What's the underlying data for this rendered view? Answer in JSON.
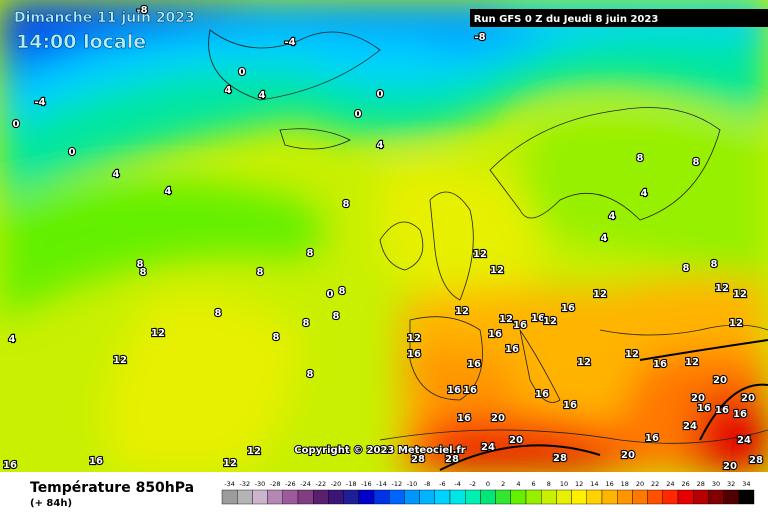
{
  "header": {
    "date": "Dimanche 11 juin 2023",
    "time": "14:00 locale",
    "run": "Run GFS 0 Z du Jeudi 8 juin 2023"
  },
  "copyright": "Copyright © 2023 Meteociel.fr",
  "footer": {
    "title": "Température 850hPa",
    "lead": "(+ 84h)"
  },
  "contour_labels": [
    -8,
    -4,
    -8,
    0,
    4,
    4,
    0,
    0,
    -4,
    0,
    0,
    4,
    4,
    4,
    8,
    8,
    8,
    8,
    8,
    0,
    8,
    8,
    8,
    8,
    8,
    8,
    4,
    12,
    12,
    12,
    12,
    12,
    12,
    16,
    16,
    16,
    16,
    12,
    12,
    16,
    16,
    16,
    12,
    16,
    16,
    16,
    16,
    16,
    20,
    20,
    20,
    16,
    24,
    28,
    28,
    28,
    12,
    12,
    16,
    16,
    8,
    8,
    4,
    4,
    4,
    8,
    8,
    12,
    12,
    12,
    12,
    16,
    20,
    20,
    16,
    16,
    16,
    20,
    24,
    24,
    20,
    28,
    12,
    12
  ],
  "colorbar": {
    "ticks": [
      -34,
      -32,
      -30,
      -28,
      -26,
      -24,
      -22,
      -20,
      -18,
      -16,
      -14,
      -12,
      -10,
      -8,
      -6,
      -4,
      -2,
      0,
      2,
      4,
      6,
      8,
      10,
      12,
      14,
      16,
      18,
      20,
      22,
      24,
      26,
      28,
      30,
      32,
      34
    ],
    "colors": [
      "#9c9c9c",
      "#b4b4b4",
      "#cdb4cd",
      "#b487b4",
      "#9c5a9c",
      "#823c82",
      "#5a1e6e",
      "#3c1478",
      "#1e1e96",
      "#0000c8",
      "#0032e6",
      "#0064ff",
      "#0096ff",
      "#00b4ff",
      "#00d2ff",
      "#00e6e6",
      "#00f0b4",
      "#00e678",
      "#32e632",
      "#64f000",
      "#96f000",
      "#c8f000",
      "#e6f000",
      "#fff000",
      "#ffd200",
      "#ffb400",
      "#ff9600",
      "#ff7800",
      "#ff5000",
      "#ff2800",
      "#e60000",
      "#b40000",
      "#820000",
      "#500000",
      "#000000"
    ]
  }
}
